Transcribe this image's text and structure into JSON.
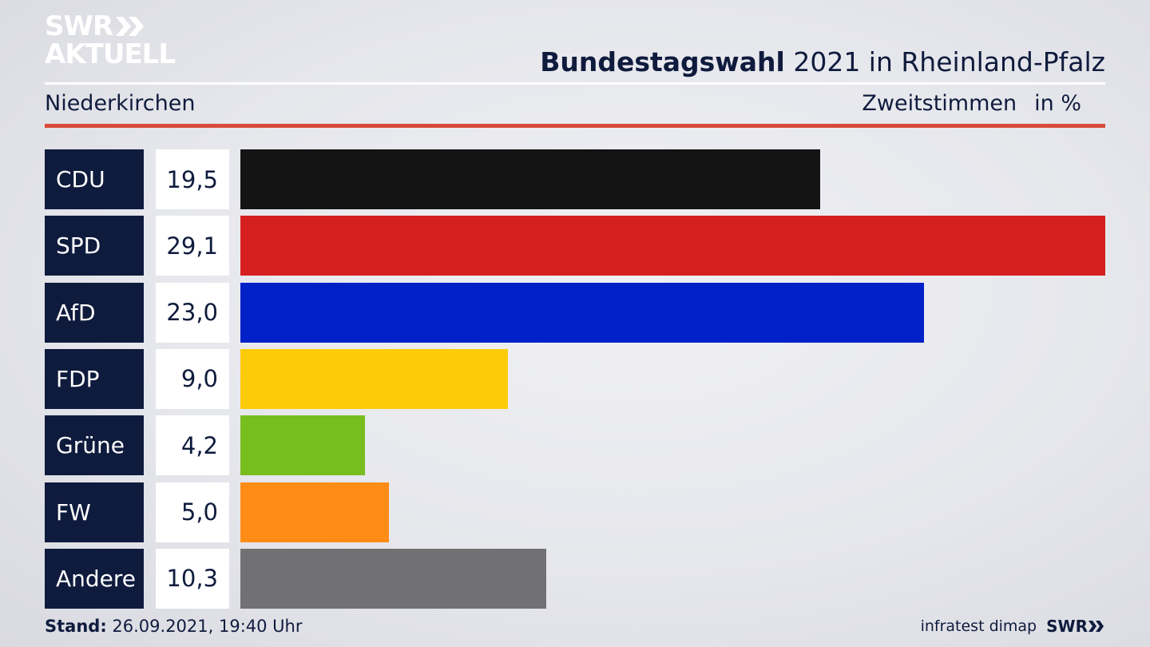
{
  "logo": {
    "line1": "SWR",
    "line2": "AKTUELL"
  },
  "title": {
    "bold": "Bundestagswahl",
    "rest": " 2021 in Rheinland-Pfalz"
  },
  "subtitle": "Niederkirchen",
  "measure": {
    "label": "Zweitstimmen",
    "unit": "in %"
  },
  "chart_data": {
    "type": "bar",
    "orientation": "horizontal",
    "categories": [
      "CDU",
      "SPD",
      "AfD",
      "FDP",
      "Grüne",
      "FW",
      "Andere"
    ],
    "values": [
      19.5,
      29.1,
      23.0,
      9.0,
      4.2,
      5.0,
      10.3
    ],
    "value_labels": [
      "19,5",
      "29,1",
      "23,0",
      "9,0",
      "4,2",
      "5,0",
      "10,3"
    ],
    "colors": [
      "#141414",
      "#d62020",
      "#0021c8",
      "#fccc0a",
      "#77bd1e",
      "#ff8c17",
      "#717174"
    ],
    "title": "Bundestagswahl 2021 in Rheinland-Pfalz",
    "subtitle": "Niederkirchen",
    "unit": "in %"
  },
  "footer": {
    "stand_label": "Stand:",
    "stand_value": " 26.09.2021, 19:40 Uhr",
    "source": "infratest dimap",
    "brand": "SWR"
  }
}
